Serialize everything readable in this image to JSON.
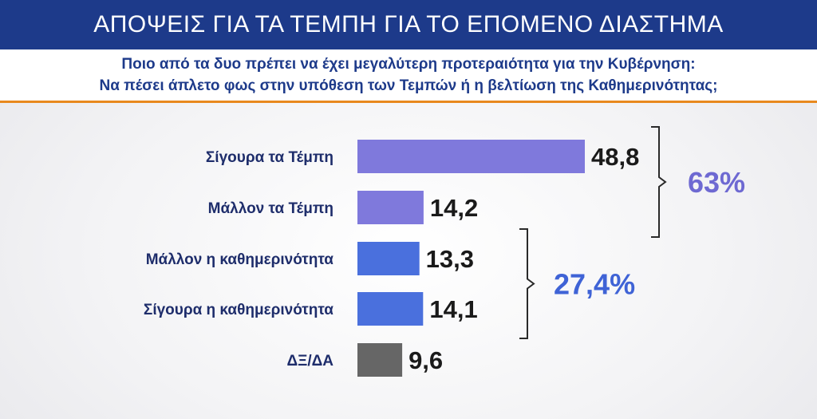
{
  "header": {
    "title": "ΑΠΟΨΕΙΣ ΓΙΑ ΤΑ ΤΕΜΠΗ ΓΙΑ ΤΟ ΕΠΟΜΕΝΟ ΔΙΑΣΤΗΜΑ"
  },
  "question": {
    "line1": "Ποιο από τα δυο πρέπει να έχει μεγαλύτερη προτεραιότητα  για την Κυβέρνηση:",
    "line2": "Να πέσει άπλετο φως στην υπόθεση των Τεμπών  ή η βελτίωση της Καθημερινότητας;"
  },
  "chart_data": {
    "type": "bar",
    "orientation": "horizontal",
    "categories": [
      "Σίγουρα τα Τέμπη",
      "Μάλλον τα Τέμπη",
      "Μάλλον η καθημερινότητα",
      "Σίγουρα η καθημερινότητα",
      "ΔΞ/ΔΑ"
    ],
    "values": [
      48.8,
      14.2,
      13.3,
      14.1,
      9.6
    ],
    "value_labels": [
      "48,8",
      "14,2",
      "13,3",
      "14,1",
      "9,6"
    ],
    "bar_colors": [
      "#7f79dc",
      "#7f79dc",
      "#4a70dd",
      "#4a70dd",
      "#666666"
    ],
    "groups": [
      {
        "label": "63%",
        "from": 0,
        "to": 1,
        "color": "#6e69d2"
      },
      {
        "label": "27,4%",
        "from": 2,
        "to": 3,
        "color": "#3f63d6"
      }
    ],
    "xlim": [
      0,
      50
    ],
    "grid": false,
    "legend": "none"
  }
}
